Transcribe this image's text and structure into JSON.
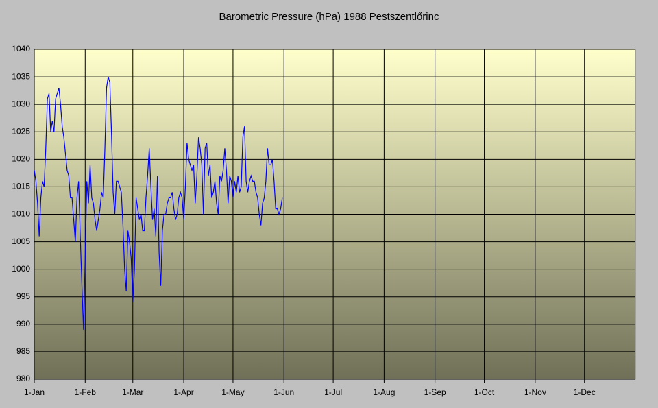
{
  "chart_data": {
    "type": "line",
    "title": "Barometric Pressure (hPa) 1988 Pestszentlőrinc",
    "x": [
      0,
      1,
      2,
      3,
      4,
      5,
      6,
      7,
      8,
      9,
      10,
      11,
      12,
      13,
      14,
      15,
      16,
      17,
      18,
      19,
      20,
      21,
      22,
      23,
      24,
      25,
      26,
      27,
      28,
      29,
      30,
      31,
      32,
      33,
      34,
      35,
      36,
      37,
      38,
      39,
      40,
      41,
      42,
      43,
      44,
      45,
      46,
      47,
      48,
      49,
      50,
      51,
      52,
      53,
      54,
      55,
      56,
      57,
      58,
      59,
      60,
      61,
      62,
      63,
      64,
      65,
      66,
      67,
      68,
      69,
      70,
      71,
      72,
      73,
      74,
      75,
      76,
      77,
      78,
      79,
      80,
      81,
      82,
      83,
      84,
      85,
      86,
      87,
      88,
      89,
      90,
      91,
      92,
      93,
      94,
      95,
      96,
      97,
      98,
      99,
      100,
      101,
      102,
      103,
      104,
      105,
      106,
      107,
      108,
      109,
      110,
      111,
      112,
      113,
      114,
      115,
      116,
      117,
      118,
      119,
      120,
      121,
      122,
      123,
      124,
      125,
      126,
      127,
      128,
      129,
      130,
      131,
      132,
      133,
      134,
      135,
      136,
      137,
      138,
      139,
      140,
      141,
      142,
      143,
      144,
      145,
      146,
      147,
      148,
      149,
      150,
      151
    ],
    "series": [
      {
        "name": "Pressure",
        "color": "#0000ff",
        "values": [
          1018,
          1016,
          1012,
          1006,
          1013,
          1016,
          1015,
          1022,
          1031,
          1032,
          1025,
          1027,
          1025,
          1031,
          1032,
          1033,
          1030,
          1026,
          1024,
          1021,
          1018,
          1017,
          1013,
          1013,
          1009,
          1005,
          1013,
          1016,
          1006,
          997,
          989,
          1002,
          1016,
          1012,
          1019,
          1013,
          1012,
          1009,
          1007,
          1009,
          1011,
          1014,
          1013,
          1022,
          1033,
          1035,
          1034,
          1025,
          1014,
          1010,
          1016,
          1016,
          1015,
          1014,
          1008,
          1000,
          996,
          1007,
          1005,
          1002,
          994,
          1000,
          1013,
          1011,
          1009,
          1010,
          1007,
          1007,
          1013,
          1017,
          1022,
          1015,
          1009,
          1011,
          1006,
          1017,
          1003,
          997,
          1007,
          1010,
          1010,
          1012,
          1013,
          1013,
          1014,
          1011,
          1009,
          1010,
          1013,
          1014,
          1013,
          1009,
          1015,
          1023,
          1020,
          1019,
          1018,
          1019,
          1012,
          1017,
          1024,
          1022,
          1019,
          1010,
          1022,
          1023,
          1017,
          1019,
          1013,
          1014,
          1016,
          1012,
          1010,
          1017,
          1016,
          1018,
          1022,
          1018,
          1012,
          1017,
          1016,
          1013,
          1016,
          1014,
          1017,
          1014,
          1015,
          1024,
          1026,
          1016,
          1014,
          1016,
          1017,
          1016,
          1016,
          1014,
          1013,
          1010,
          1008,
          1012,
          1013,
          1016,
          1022,
          1019,
          1019,
          1020,
          1016,
          1011,
          1011,
          1010,
          1011,
          1013
        ]
      }
    ],
    "xlim": [
      0,
      366
    ],
    "xticks": [
      {
        "value": 0,
        "label": "1-Jan"
      },
      {
        "value": 31,
        "label": "1-Feb"
      },
      {
        "value": 60,
        "label": "1-Mar"
      },
      {
        "value": 91,
        "label": "1-Apr"
      },
      {
        "value": 121,
        "label": "1-May"
      },
      {
        "value": 152,
        "label": "1-Jun"
      },
      {
        "value": 182,
        "label": "1-Jul"
      },
      {
        "value": 213,
        "label": "1-Aug"
      },
      {
        "value": 244,
        "label": "1-Sep"
      },
      {
        "value": 274,
        "label": "1-Oct"
      },
      {
        "value": 305,
        "label": "1-Nov"
      },
      {
        "value": 335,
        "label": "1-Dec"
      }
    ],
    "ylim": [
      980,
      1040
    ],
    "yticks": [
      980,
      985,
      990,
      995,
      1000,
      1005,
      1010,
      1015,
      1020,
      1025,
      1030,
      1035,
      1040
    ],
    "grid": true
  }
}
